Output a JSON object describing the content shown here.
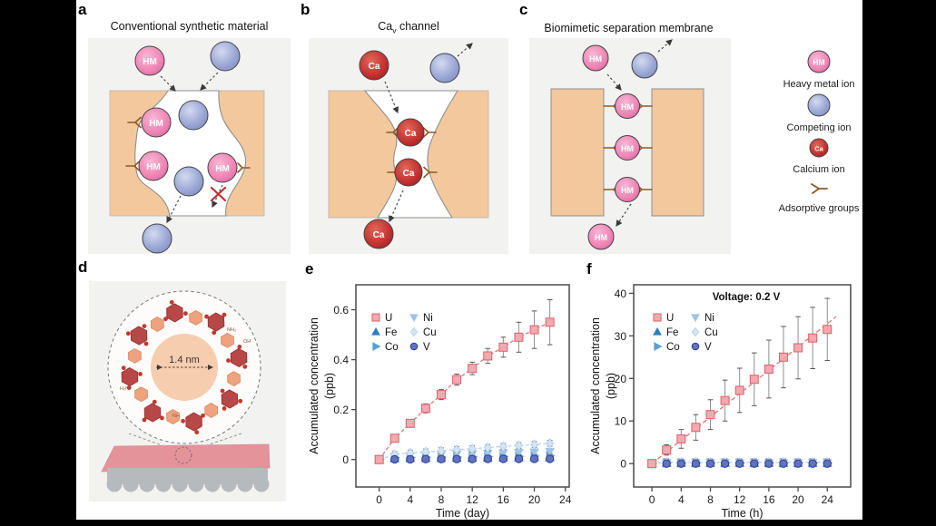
{
  "figure": {
    "panels": {
      "a": {
        "label": "a",
        "title": "Conventional synthetic material"
      },
      "b": {
        "label": "b",
        "title_pre": "Ca",
        "title_sub": "v",
        "title_post": " channel"
      },
      "c": {
        "label": "c",
        "title": "Biomimetic separation membrane"
      },
      "d": {
        "label": "d",
        "pore_size": "1.4 nm",
        "groups": [
          "NH₂",
          "OH",
          "H₂N",
          "HN",
          "NH",
          "OH"
        ]
      },
      "e": {
        "label": "e"
      },
      "f": {
        "label": "f"
      }
    },
    "ion_labels": {
      "hm": "HM",
      "ca": "Ca"
    },
    "legend": {
      "items": [
        {
          "icon": "heavy-metal-ion-icon",
          "label": "Heavy metal ion"
        },
        {
          "icon": "competing-ion-icon",
          "label": "Competing ion"
        },
        {
          "icon": "calcium-ion-icon",
          "label": "Calcium ion"
        },
        {
          "icon": "adsorptive-group-icon",
          "label": "Adsorptive groups"
        }
      ]
    }
  },
  "colors": {
    "membrane_orange": "#f3c89c",
    "hm_pink": "#ee82b4",
    "calcium_red": "#c23030",
    "competing_blue": "#98a5d4",
    "panel_bg": "#f2f2f1",
    "uranium_accent": "#e0696f"
  },
  "chart_data": [
    {
      "id": "chart-e",
      "type": "scatter",
      "xlabel": "Time (day)",
      "ylabel": "Accumulated concentration (ppb)",
      "ylabel_lines": [
        "Accumulated concentration",
        "(ppb)"
      ],
      "annotation": "",
      "xlim": [
        -3,
        24.5
      ],
      "ylim": [
        -0.11,
        0.7
      ],
      "xticks": [
        0,
        4,
        8,
        12,
        16,
        20,
        24
      ],
      "yticks": [
        0,
        0.2,
        0.4,
        0.6
      ],
      "x": [
        0,
        2,
        4,
        6,
        8,
        10,
        12,
        14,
        16,
        18,
        20,
        22
      ],
      "legend_cols": [
        [
          "U",
          "Fe",
          "Co"
        ],
        [
          "Ni",
          "Cu",
          "V"
        ]
      ],
      "series": [
        {
          "name": "Fe",
          "marker": "triangle-up",
          "color": "#2e7fc2",
          "edge": "#2e7fc2",
          "line": "none",
          "values": [
            0,
            0.004,
            0.005,
            0.005,
            0.005,
            0.006,
            0.006,
            0.006,
            0.007,
            0.007,
            0.008,
            0.008
          ],
          "err": 0.004
        },
        {
          "name": "Co",
          "marker": "triangle-right",
          "color": "#58a0d7",
          "edge": "#58a0d7",
          "line": "none",
          "values": [
            0,
            0.007,
            0.008,
            0.009,
            0.01,
            0.01,
            0.011,
            0.012,
            0.012,
            0.013,
            0.014,
            0.015
          ],
          "err": 0.005
        },
        {
          "name": "Ni",
          "marker": "triangle-down",
          "color": "#9cc5e5",
          "edge": "#9cc5e5",
          "line": "none",
          "values": [
            0,
            0.012,
            0.015,
            0.018,
            0.02,
            0.022,
            0.023,
            0.025,
            0.026,
            0.028,
            0.03,
            0.032
          ],
          "err": 0.008
        },
        {
          "name": "Cu",
          "marker": "diamond",
          "color": "#d3e4f3",
          "edge": "#b6d3ea",
          "line": "connect",
          "line_color": "#b3d0ea",
          "values": [
            0,
            0.02,
            0.026,
            0.03,
            0.035,
            0.04,
            0.043,
            0.048,
            0.052,
            0.056,
            0.06,
            0.065
          ],
          "err": 0.012
        },
        {
          "name": "V",
          "marker": "circle",
          "color": "#6272c3",
          "edge": "#2c3c8e",
          "line": "none",
          "values": [
            0,
            0.001,
            0.001,
            0.002,
            0.002,
            0.002,
            0.002,
            0.003,
            0.003,
            0.003,
            0.003,
            0.003
          ],
          "err": 0.004
        },
        {
          "name": "U",
          "marker": "square",
          "color": "#f2a9af",
          "edge": "#d8636c",
          "line": "connect",
          "line_color": "#e0696f",
          "values": [
            0,
            0.085,
            0.145,
            0.205,
            0.26,
            0.32,
            0.365,
            0.415,
            0.45,
            0.49,
            0.52,
            0.55
          ],
          "err": [
            0.008,
            0.012,
            0.015,
            0.018,
            0.02,
            0.022,
            0.025,
            0.03,
            0.04,
            0.06,
            0.075,
            0.09
          ]
        }
      ]
    },
    {
      "id": "chart-f",
      "type": "scatter",
      "xlabel": "Time (h)",
      "ylabel": "Accumulated concentration (ppb)",
      "ylabel_lines": [
        "Accumulated concentration",
        "(ppb)"
      ],
      "annotation": "Voltage: 0.2 V",
      "xlim": [
        -2.5,
        27.2
      ],
      "ylim": [
        -5.5,
        42
      ],
      "xticks": [
        0,
        4,
        8,
        12,
        16,
        20,
        24
      ],
      "yticks": [
        0,
        10,
        20,
        30,
        40
      ],
      "x": [
        0,
        2,
        4,
        6,
        8,
        10,
        12,
        14,
        16,
        18,
        20,
        22,
        24
      ],
      "legend_cols": [
        [
          "U",
          "Fe",
          "Co"
        ],
        [
          "Ni",
          "Cu",
          "V"
        ]
      ],
      "series": [
        {
          "name": "Fe",
          "marker": "triangle-up",
          "color": "#2e7fc2",
          "edge": "#2e7fc2",
          "line": "none",
          "values": [
            0,
            0.1,
            0.1,
            0.1,
            0.1,
            0.1,
            0.1,
            0.1,
            0.1,
            0.1,
            0.1,
            0.1,
            0.1
          ],
          "err": 0.5
        },
        {
          "name": "Co",
          "marker": "triangle-right",
          "color": "#58a0d7",
          "edge": "#58a0d7",
          "line": "none",
          "values": [
            0,
            0.15,
            0.15,
            0.15,
            0.15,
            0.15,
            0.15,
            0.15,
            0.15,
            0.15,
            0.15,
            0.15,
            0.15
          ],
          "err": 0.5
        },
        {
          "name": "Ni",
          "marker": "triangle-down",
          "color": "#9cc5e5",
          "edge": "#9cc5e5",
          "line": "none",
          "values": [
            0,
            0.2,
            0.2,
            0.2,
            0.2,
            0.2,
            0.2,
            0.2,
            0.2,
            0.2,
            0.2,
            0.2,
            0.2
          ],
          "err": 0.6
        },
        {
          "name": "Cu",
          "marker": "diamond",
          "color": "#d3e4f3",
          "edge": "#b6d3ea",
          "line": "connect",
          "line_color": "#b3d0ea",
          "values": [
            0,
            0.3,
            0.3,
            0.3,
            0.3,
            0.3,
            0.3,
            0.3,
            0.3,
            0.3,
            0.3,
            0.3,
            0.3
          ],
          "err": 0.8
        },
        {
          "name": "V",
          "marker": "circle",
          "color": "#6272c3",
          "edge": "#2c3c8e",
          "line": "none",
          "values": [
            0,
            0,
            0,
            0,
            0,
            0,
            0,
            0,
            0,
            0,
            0,
            0,
            0
          ],
          "err": 0.5
        },
        {
          "name": "U",
          "marker": "square",
          "color": "#f2a9af",
          "edge": "#d8636c",
          "line": "fit",
          "line_color": "#e0696f",
          "fit": [
            [
              0,
              0
            ],
            [
              25.2,
              34.5
            ]
          ],
          "values": [
            0,
            3.2,
            5.8,
            8.5,
            11.5,
            14.8,
            17.2,
            19.8,
            22.2,
            25,
            27.2,
            29.5,
            31.5
          ],
          "err": [
            0.3,
            1.2,
            2.2,
            3,
            3.5,
            4.8,
            5.2,
            6.2,
            6.8,
            7.2,
            7.3,
            7.2,
            7.3
          ]
        }
      ]
    }
  ]
}
